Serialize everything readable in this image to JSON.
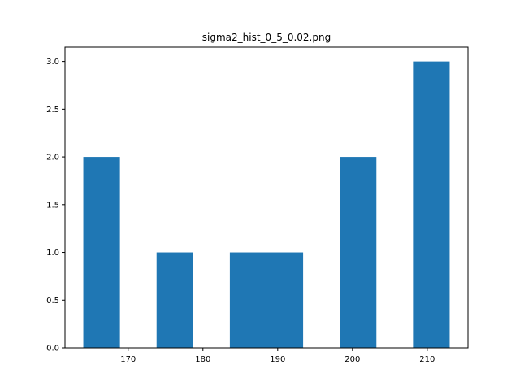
{
  "chart_data": {
    "type": "bar",
    "title": "sigma2_hist_0_5_0.02.png",
    "xlabel": "",
    "ylabel": "",
    "bins": [
      {
        "start": 164.0,
        "end": 168.9,
        "value": 2
      },
      {
        "start": 168.9,
        "end": 173.8,
        "value": 0
      },
      {
        "start": 173.8,
        "end": 178.7,
        "value": 1
      },
      {
        "start": 178.7,
        "end": 183.6,
        "value": 0
      },
      {
        "start": 183.6,
        "end": 188.5,
        "value": 1
      },
      {
        "start": 188.5,
        "end": 193.4,
        "value": 1
      },
      {
        "start": 193.4,
        "end": 198.3,
        "value": 0
      },
      {
        "start": 198.3,
        "end": 203.2,
        "value": 2
      },
      {
        "start": 203.2,
        "end": 208.1,
        "value": 0
      },
      {
        "start": 208.1,
        "end": 213.0,
        "value": 3
      }
    ],
    "xlim": [
      161.55,
      215.45
    ],
    "ylim": [
      0,
      3.15
    ],
    "xticks": [
      170,
      180,
      190,
      200,
      210
    ],
    "xtick_labels": [
      "170",
      "180",
      "190",
      "200",
      "210"
    ],
    "yticks": [
      0.0,
      0.5,
      1.0,
      1.5,
      2.0,
      2.5,
      3.0
    ],
    "ytick_labels": [
      "0.0",
      "0.5",
      "1.0",
      "1.5",
      "2.0",
      "2.5",
      "3.0"
    ],
    "grid": false,
    "colors": {
      "bar": "#1f77b4",
      "axes": "#000000",
      "background": "#ffffff"
    }
  }
}
